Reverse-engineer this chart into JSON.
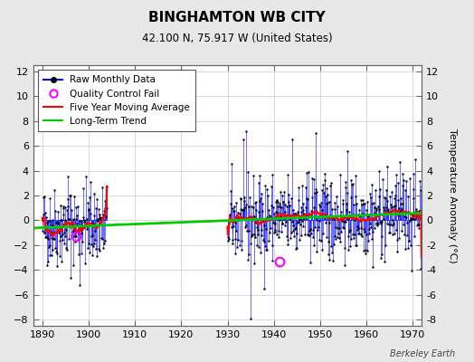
{
  "title": "BINGHAMTON WB CITY",
  "subtitle": "42.100 N, 75.917 W (United States)",
  "ylabel": "Temperature Anomaly (°C)",
  "attribution": "Berkeley Earth",
  "ylim": [
    -8.5,
    12.5
  ],
  "xlim": [
    1888,
    1972
  ],
  "xticks": [
    1890,
    1900,
    1910,
    1920,
    1930,
    1940,
    1950,
    1960,
    1970
  ],
  "yticks": [
    -8,
    -6,
    -4,
    -2,
    0,
    2,
    4,
    6,
    8,
    10,
    12
  ],
  "bg_color": "#e8e8e8",
  "plot_bg_color": "#ffffff",
  "raw_line_color": "#0000ff",
  "raw_dot_color": "#000000",
  "moving_avg_color": "#ff0000",
  "trend_color": "#00cc00",
  "qc_fail_color": "#ff00ff",
  "seed": 42,
  "period1_start": 1890,
  "period1_end": 1903,
  "period2_start": 1930,
  "period2_end": 1971
}
